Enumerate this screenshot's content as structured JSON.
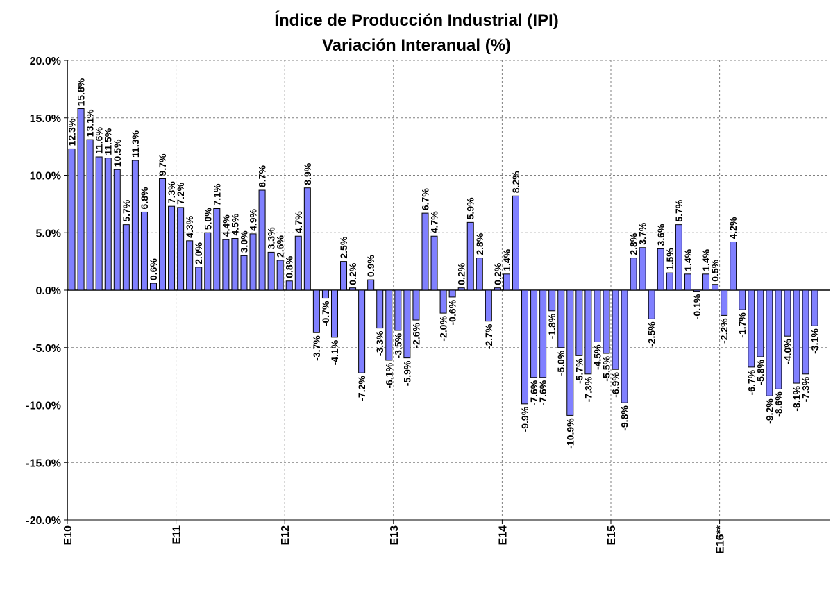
{
  "chart_data": {
    "type": "bar",
    "title": "Índice de Producción Industrial (IPI)",
    "subtitle": "Variación Interanual (%)",
    "xlabel": "",
    "ylabel": "",
    "ylim": [
      -20,
      20
    ],
    "y_ticks": [
      "20.0%",
      "15.0%",
      "10.0%",
      "5.0%",
      "0.0%",
      "-5.0%",
      "-10.0%",
      "-15.0%",
      "-20.0%"
    ],
    "x_tick_labels": [
      {
        "label": "E10",
        "index": 0
      },
      {
        "label": "E11",
        "index": 12
      },
      {
        "label": "E12",
        "index": 24
      },
      {
        "label": "E13",
        "index": 36
      },
      {
        "label": "E14",
        "index": 48
      },
      {
        "label": "E15",
        "index": 60
      },
      {
        "label": "E16**",
        "index": 72
      }
    ],
    "grid": true,
    "bar_color": "#8080ff",
    "values": [
      12.3,
      15.8,
      13.1,
      11.6,
      11.5,
      10.5,
      5.7,
      11.3,
      6.8,
      0.6,
      9.7,
      7.3,
      7.2,
      4.3,
      2.0,
      5.0,
      7.1,
      4.4,
      4.5,
      3.0,
      4.9,
      8.7,
      3.3,
      2.6,
      0.8,
      4.7,
      8.9,
      -3.7,
      -0.7,
      -4.1,
      2.5,
      0.2,
      -7.2,
      0.9,
      -3.3,
      -6.1,
      -3.5,
      -5.9,
      -2.6,
      6.7,
      4.7,
      -2.0,
      -0.6,
      0.2,
      5.9,
      2.8,
      -2.7,
      0.2,
      1.4,
      8.2,
      -9.9,
      -7.6,
      -7.6,
      -1.8,
      -5.0,
      -10.9,
      -5.7,
      -7.3,
      -4.5,
      -5.5,
      -6.9,
      -9.8,
      2.8,
      3.7,
      -2.5,
      3.6,
      1.5,
      5.7,
      1.4,
      -0.1,
      1.4,
      0.5,
      -2.2,
      4.2,
      -1.7,
      -6.7,
      -5.8,
      -9.2,
      -8.6,
      -4.0,
      -8.1,
      -7.3,
      -3.1
    ],
    "data_labels": [
      "12.3%",
      "15.8%",
      "13.1%",
      "11.6%",
      "11.5%",
      "10.5%",
      "5.7%",
      "11.3%",
      "6.8%",
      "0.6%",
      "9.7%",
      "7.3%",
      "7.2%",
      "4.3%",
      "2.0%",
      "5.0%",
      "7.1%",
      "4.4%",
      "4.5%",
      "3.0%",
      "4.9%",
      "8.7%",
      "3.3%",
      "2.6%",
      "0.8%",
      "4.7%",
      "8.9%",
      "-3.7%",
      "-0.7%",
      "-4.1%",
      "2.5%",
      "0.2%",
      "-7.2%",
      "0.9%",
      "-3.3%",
      "-6.1%",
      "-3.5%",
      "-5.9%",
      "-2.6%",
      "6.7%",
      "4.7%",
      "-2.0%",
      "-0.6%",
      "0.2%",
      "5.9%",
      "2.8%",
      "-2.7%",
      "0.2%",
      "1.4%",
      "8.2%",
      "-9.9%",
      "-7.6%",
      "-7.6%",
      "-1.8%",
      "-5.0%",
      "-10.9%",
      "-5.7%",
      "-7.3%",
      "-4.5%",
      "-5.5%",
      "-6.9%",
      "-9.8%",
      "2.8%",
      "3.7%",
      "-2.5%",
      "3.6%",
      "1.5%",
      "5.7%",
      "1.4%",
      "-0.1%",
      "1.4%",
      "0.5%",
      "-2.2%",
      "4.2%",
      "-1.7%",
      "-6.7%",
      "-5.8%",
      "-9.2%",
      "-8.6%",
      "-4.0%",
      "-8.1%",
      "-7.3%",
      "-3.1%"
    ]
  }
}
